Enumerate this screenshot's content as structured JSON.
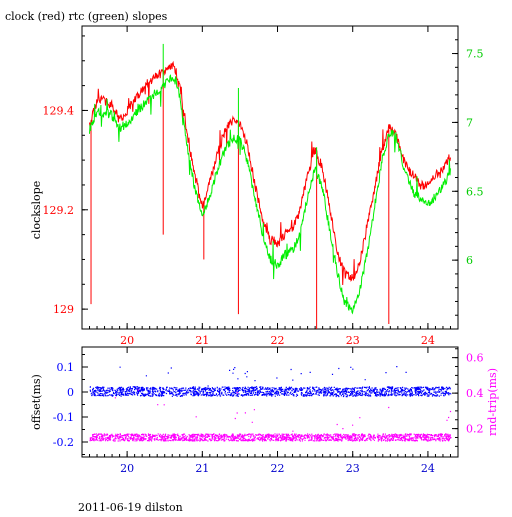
{
  "page": {
    "title": "clock (red) rtc (green) slopes",
    "footer": "2011-06-19 dilston"
  },
  "colors": {
    "clock": "#ff0000",
    "rtc": "#00ee00",
    "offset": "#0000ff",
    "rndtrip": "#ff00ff",
    "frame": "#000000",
    "right_axis_top": "#00cc00",
    "bottom_x_ticks": "#0000cc"
  },
  "chart_data": [
    {
      "type": "line",
      "title": "clock (red) rtc (green) slopes",
      "xlabel": "",
      "ylabel": "clockslope",
      "xlim": [
        19.4,
        24.4
      ],
      "ylim": [
        128.96,
        129.57
      ],
      "x_ticks": [
        "20",
        "21",
        "22",
        "23",
        "24"
      ],
      "y_ticks": [
        "129",
        "129.2",
        "129.4"
      ],
      "y2lim": [
        5.5,
        7.7
      ],
      "y2_ticks": [
        "6",
        "6.5",
        "7",
        "7.5"
      ],
      "grid": false,
      "legend": "none",
      "series": [
        {
          "name": "clock",
          "axis": "left",
          "x": [
            19.5,
            19.6,
            19.7,
            19.8,
            19.9,
            20.0,
            20.1,
            20.2,
            20.3,
            20.4,
            20.5,
            20.6,
            20.65,
            20.7,
            20.8,
            20.9,
            21.0,
            21.05,
            21.1,
            21.2,
            21.3,
            21.4,
            21.5,
            21.6,
            21.7,
            21.8,
            21.9,
            22.0,
            22.1,
            22.2,
            22.3,
            22.4,
            22.5,
            22.6,
            22.7,
            22.8,
            22.9,
            23.0,
            23.1,
            23.2,
            23.3,
            23.4,
            23.5,
            23.6,
            23.7,
            23.8,
            23.9,
            24.0,
            24.1,
            24.2,
            24.3
          ],
          "values": [
            129.37,
            129.42,
            129.42,
            129.41,
            129.38,
            129.4,
            129.42,
            129.44,
            129.46,
            129.47,
            129.48,
            129.49,
            129.48,
            129.45,
            129.35,
            129.27,
            129.21,
            129.23,
            129.26,
            129.31,
            129.36,
            129.38,
            129.37,
            129.33,
            129.25,
            129.18,
            129.14,
            129.13,
            129.15,
            129.16,
            129.2,
            129.27,
            129.32,
            129.28,
            129.2,
            129.11,
            129.07,
            129.06,
            129.1,
            129.17,
            129.25,
            129.33,
            129.37,
            129.34,
            129.29,
            129.27,
            129.25,
            129.25,
            129.27,
            129.28,
            129.31
          ],
          "spikes": [
            {
              "x": 19.52,
              "value": 129.01
            },
            {
              "x": 20.48,
              "value": 129.15
            },
            {
              "x": 21.02,
              "value": 129.1
            },
            {
              "x": 21.48,
              "value": 128.99
            },
            {
              "x": 22.52,
              "value": 128.96
            },
            {
              "x": 23.48,
              "value": 128.97
            }
          ]
        },
        {
          "name": "rtc",
          "axis": "right",
          "x": [
            19.5,
            19.6,
            19.7,
            19.8,
            19.9,
            20.0,
            20.1,
            20.2,
            20.3,
            20.4,
            20.5,
            20.6,
            20.65,
            20.7,
            20.8,
            20.9,
            21.0,
            21.05,
            21.1,
            21.2,
            21.3,
            21.4,
            21.5,
            21.6,
            21.7,
            21.8,
            21.9,
            22.0,
            22.1,
            22.2,
            22.3,
            22.4,
            22.5,
            22.6,
            22.7,
            22.8,
            22.9,
            23.0,
            23.1,
            23.2,
            23.3,
            23.4,
            23.5,
            23.6,
            23.7,
            23.8,
            23.9,
            24.0,
            24.1,
            24.2,
            24.3
          ],
          "values": [
            6.95,
            7.08,
            7.07,
            7.05,
            6.96,
            6.99,
            7.05,
            7.12,
            7.18,
            7.22,
            7.27,
            7.32,
            7.3,
            7.18,
            6.82,
            6.52,
            6.34,
            6.38,
            6.47,
            6.65,
            6.8,
            6.88,
            6.88,
            6.72,
            6.44,
            6.18,
            6.01,
            5.96,
            6.04,
            6.06,
            6.2,
            6.46,
            6.66,
            6.52,
            6.2,
            5.9,
            5.68,
            5.64,
            5.8,
            6.07,
            6.42,
            6.75,
            6.94,
            6.85,
            6.63,
            6.5,
            6.44,
            6.4,
            6.47,
            6.54,
            6.64
          ],
          "spikes": [
            {
              "x": 20.48,
              "value": 7.57
            },
            {
              "x": 21.48,
              "value": 7.25
            },
            {
              "x": 22.52,
              "value": 6.82
            }
          ]
        }
      ]
    },
    {
      "type": "scatter",
      "xlabel": "",
      "ylabel": "offset(ms)",
      "y2label": "rnd-trip(ms)",
      "xlim": [
        19.4,
        24.4
      ],
      "ylim": [
        -0.26,
        0.18
      ],
      "x_ticks": [
        "20",
        "21",
        "22",
        "23",
        "24"
      ],
      "y_ticks": [
        "-0.2",
        "-0.1",
        "0",
        "0.1"
      ],
      "y2lim": [
        0.04,
        0.66
      ],
      "y2_ticks": [
        "0.2",
        "0.4",
        "0.6"
      ],
      "grid": false,
      "legend": "none",
      "series": [
        {
          "name": "offset",
          "axis": "left",
          "x": [
            19.5,
            19.7,
            19.9,
            20.1,
            20.3,
            20.5,
            20.7,
            20.9,
            21.1,
            21.3,
            21.5,
            21.7,
            21.9,
            22.1,
            22.3,
            22.5,
            22.7,
            22.9,
            23.1,
            23.3,
            23.5,
            23.7,
            23.9,
            24.1,
            24.3
          ],
          "values": [
            0.003,
            0.002,
            0.001,
            0.004,
            0.0,
            0.002,
            -0.001,
            0.003,
            0.001,
            0.002,
            0.0,
            0.004,
            0.001,
            0.002,
            0.0,
            0.003,
            0.001,
            -0.002,
            0.002,
            0.001,
            0.003,
            0.0,
            0.002,
            0.001,
            0.003
          ],
          "band": 0.018
        },
        {
          "name": "rnd-trip",
          "axis": "right",
          "x": [
            19.5,
            19.7,
            19.9,
            20.1,
            20.3,
            20.5,
            20.7,
            20.9,
            21.1,
            21.3,
            21.5,
            21.7,
            21.9,
            22.1,
            22.3,
            22.5,
            22.7,
            22.9,
            23.1,
            23.3,
            23.5,
            23.7,
            23.9,
            24.1,
            24.3
          ],
          "values": [
            0.15,
            0.15,
            0.15,
            0.15,
            0.15,
            0.15,
            0.15,
            0.15,
            0.15,
            0.15,
            0.15,
            0.15,
            0.15,
            0.15,
            0.15,
            0.15,
            0.15,
            0.15,
            0.15,
            0.15,
            0.15,
            0.15,
            0.15,
            0.15,
            0.15
          ],
          "band": 0.02
        }
      ]
    }
  ]
}
